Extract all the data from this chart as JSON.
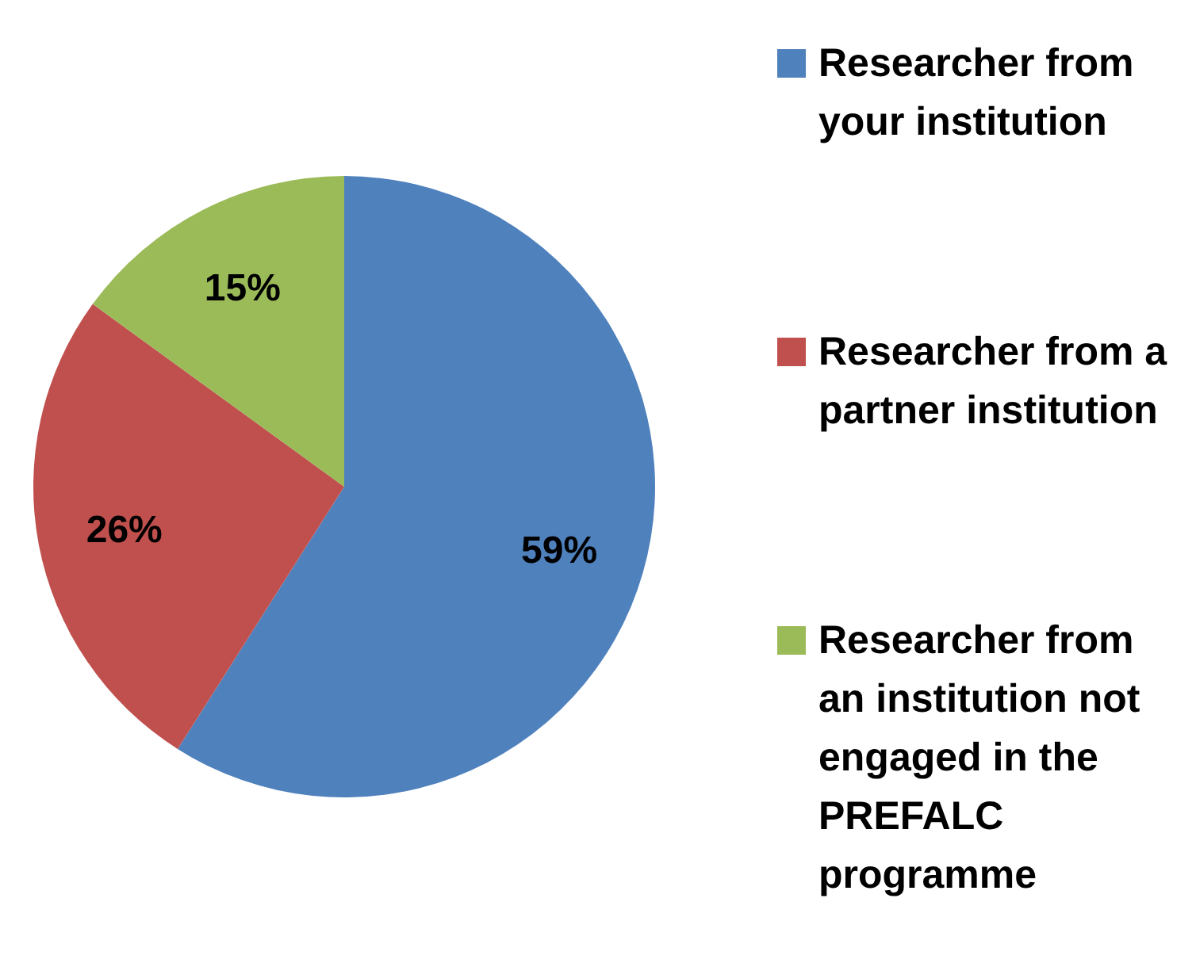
{
  "chart_data": {
    "type": "pie",
    "categories": [
      "Researcher from your institution",
      "Researcher from a partner institution",
      "Researcher from an institution not engaged in the PREFALC programme"
    ],
    "values": [
      59,
      26,
      15
    ],
    "colors": [
      "#4f81bd",
      "#c0504d",
      "#9bbb59"
    ],
    "value_labels": [
      "59%",
      "26%",
      "15%"
    ],
    "legend": "right"
  }
}
